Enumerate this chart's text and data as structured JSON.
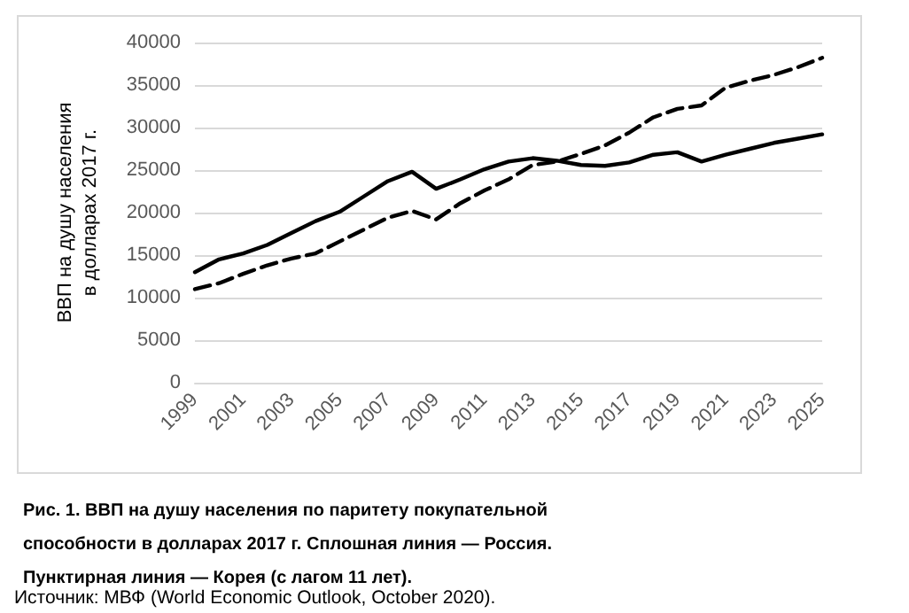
{
  "chart_data": {
    "type": "line",
    "title": "Рис. 1. ВВП на душу населения по паритету покупательной способности в долларах 2017 г. Сплошная линия — Россия. Пунктирная линия — Корея (с лагом 11 лет).",
    "ylabel": "ВВП на душу населения в долларах 2017 г.",
    "annotations": [
      "Источник: МВФ (World Economic Outlook, October 2020)."
    ],
    "categories": [
      "1999",
      null,
      "2001",
      null,
      "2003",
      null,
      "2005",
      null,
      "2007",
      null,
      "2009",
      null,
      "2011",
      null,
      "2013",
      null,
      "2015",
      null,
      "2017",
      null,
      "2019",
      null,
      "2021",
      null,
      "2023",
      null,
      "2025"
    ],
    "series": [
      {
        "color": "#000000",
        "line_style": "solid",
        "values": [
          13000,
          14500,
          15200,
          16200,
          17600,
          19000,
          20100,
          21900,
          23700,
          24800,
          22800,
          23900,
          25100,
          26000,
          26400,
          26100,
          25600,
          25500,
          25900,
          26800,
          27100,
          26000,
          26800,
          27500,
          28200,
          28700,
          29200
        ]
      },
      {
        "color": "#000000",
        "line_style": "dashed",
        "values": [
          11000,
          11700,
          12800,
          13800,
          14600,
          15200,
          16600,
          18000,
          19400,
          20200,
          19200,
          21100,
          22600,
          23900,
          25600,
          26000,
          26900,
          27900,
          29400,
          31200,
          32200,
          32600,
          34700,
          35500,
          36200,
          37100,
          38200
        ]
      }
    ],
    "ylim": [
      0,
      40000
    ],
    "yticks": [
      0,
      5000,
      10000,
      15000,
      20000,
      25000,
      30000,
      35000,
      40000
    ],
    "grid": "y",
    "marker": "none"
  }
}
